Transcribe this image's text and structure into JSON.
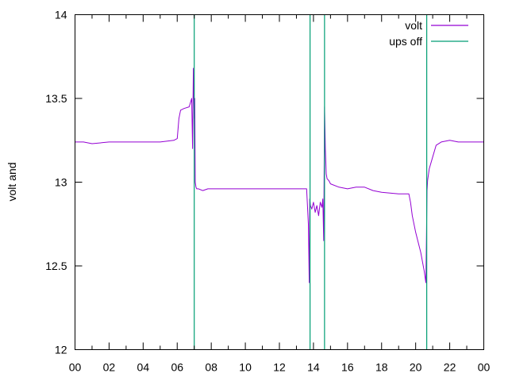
{
  "chart_data": {
    "type": "line",
    "title": "",
    "xlabel": "",
    "ylabel": "volt and",
    "xlim": [
      0,
      24
    ],
    "ylim": [
      12,
      14
    ],
    "grid": false,
    "legend_position": "top-right",
    "x_ticks": [
      "00",
      "02",
      "04",
      "06",
      "08",
      "10",
      "12",
      "14",
      "16",
      "18",
      "20",
      "22",
      "00"
    ],
    "y_ticks": [
      "12",
      "12.5",
      "13",
      "13.5",
      "14"
    ],
    "series": [
      {
        "name": "volt",
        "color": "#9400d3",
        "style": "line",
        "x": [
          0,
          0.5,
          1.0,
          2.0,
          3.0,
          4.0,
          5.0,
          5.8,
          6.0,
          6.1,
          6.2,
          6.4,
          6.7,
          6.85,
          6.9,
          6.95,
          7.0,
          7.03,
          7.06,
          7.1,
          7.15,
          7.25,
          7.5,
          7.8,
          8.0,
          9.0,
          10.0,
          11.0,
          12.0,
          13.0,
          13.6,
          13.7,
          13.75,
          13.78,
          13.82,
          13.9,
          14.0,
          14.1,
          14.2,
          14.3,
          14.4,
          14.5,
          14.55,
          14.6,
          14.65,
          14.7,
          14.75,
          14.8,
          14.9,
          15.0,
          15.5,
          16.0,
          16.5,
          17.0,
          17.5,
          18.0,
          19.0,
          19.6,
          19.7,
          19.8,
          20.0,
          20.3,
          20.5,
          20.6,
          20.63,
          20.67,
          20.7,
          20.8,
          21.0,
          21.2,
          21.5,
          22.0,
          22.5,
          23.0,
          24.0
        ],
        "y": [
          13.24,
          13.24,
          13.23,
          13.24,
          13.24,
          13.24,
          13.24,
          13.25,
          13.26,
          13.38,
          13.43,
          13.44,
          13.45,
          13.5,
          13.2,
          13.68,
          13.38,
          13.5,
          13.0,
          12.97,
          12.96,
          12.96,
          12.95,
          12.96,
          12.96,
          12.96,
          12.96,
          12.96,
          12.96,
          12.96,
          12.96,
          12.75,
          12.4,
          12.9,
          12.86,
          12.84,
          12.88,
          12.82,
          12.86,
          12.8,
          12.88,
          12.85,
          12.9,
          12.65,
          13.45,
          13.2,
          13.05,
          13.02,
          13.01,
          12.99,
          12.97,
          12.96,
          12.97,
          12.97,
          12.95,
          12.94,
          12.93,
          12.93,
          12.88,
          12.8,
          12.7,
          12.58,
          12.47,
          12.4,
          12.65,
          12.95,
          13.01,
          13.08,
          13.15,
          13.22,
          13.24,
          13.25,
          13.24,
          13.24,
          13.24
        ]
      },
      {
        "name": "ups off",
        "color": "#009e73",
        "style": "vertical-spikes",
        "events_x": [
          7.0,
          13.8,
          14.65,
          20.65
        ]
      }
    ]
  }
}
